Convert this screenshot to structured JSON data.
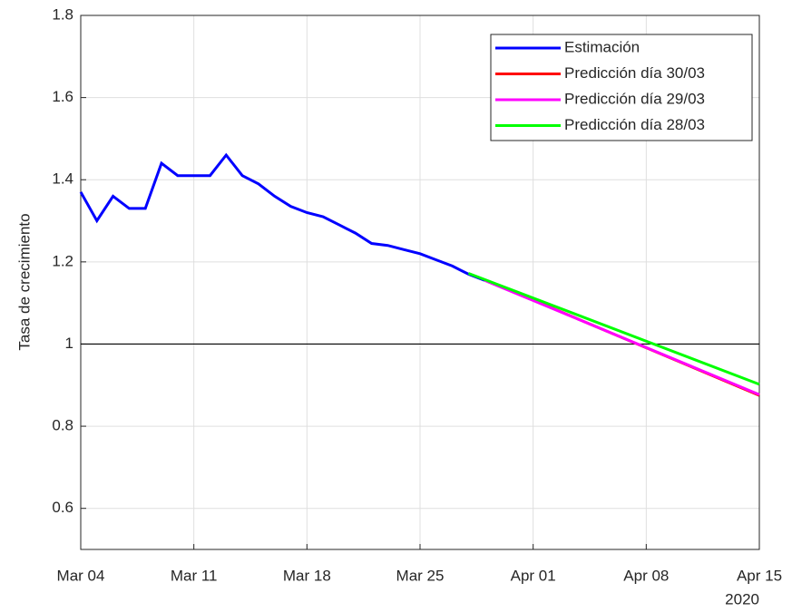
{
  "chart_data": {
    "type": "line",
    "ylabel": "Tasa de crecimiento",
    "x_secondary_label": "2020",
    "xlim": [
      "2020-03-04",
      "2020-04-15"
    ],
    "xticks": [
      {
        "value": "2020-03-04",
        "label": "Mar 04"
      },
      {
        "value": "2020-03-11",
        "label": "Mar 11"
      },
      {
        "value": "2020-03-18",
        "label": "Mar 18"
      },
      {
        "value": "2020-03-25",
        "label": "Mar 25"
      },
      {
        "value": "2020-04-01",
        "label": "Apr 01"
      },
      {
        "value": "2020-04-08",
        "label": "Apr 08"
      },
      {
        "value": "2020-04-15",
        "label": "Apr 15"
      }
    ],
    "ylim": [
      0.5,
      1.8
    ],
    "yticks": [
      0.6,
      0.8,
      1,
      1.2,
      1.4,
      1.6,
      1.8
    ],
    "grid": true,
    "reference_line": 1,
    "legend": "upper right",
    "series": [
      {
        "name": "Estimación",
        "color": "#0000ff",
        "x": [
          "2020-03-04",
          "2020-03-05",
          "2020-03-06",
          "2020-03-07",
          "2020-03-08",
          "2020-03-09",
          "2020-03-10",
          "2020-03-11",
          "2020-03-12",
          "2020-03-13",
          "2020-03-14",
          "2020-03-15",
          "2020-03-16",
          "2020-03-17",
          "2020-03-18",
          "2020-03-19",
          "2020-03-20",
          "2020-03-21",
          "2020-03-22",
          "2020-03-23",
          "2020-03-24",
          "2020-03-25",
          "2020-03-26",
          "2020-03-27",
          "2020-03-28",
          "2020-03-29"
        ],
        "values": [
          1.37,
          1.3,
          1.36,
          1.33,
          1.33,
          1.44,
          1.41,
          1.41,
          1.41,
          1.46,
          1.41,
          1.39,
          1.36,
          1.335,
          1.32,
          1.31,
          1.29,
          1.27,
          1.245,
          1.24,
          1.23,
          1.22,
          1.205,
          1.19,
          1.17,
          1.155
        ]
      },
      {
        "name": "Predicción día 30/03",
        "color": "#ff0000",
        "x": [
          "2020-03-30",
          "2020-04-15"
        ],
        "values": [
          1.14,
          0.875
        ]
      },
      {
        "name": "Predicción día 29/03",
        "color": "#ff00ff",
        "x": [
          "2020-03-29",
          "2020-04-15"
        ],
        "values": [
          1.155,
          0.877
        ]
      },
      {
        "name": "Predicción día 28/03",
        "color": "#00ff00",
        "x": [
          "2020-03-28",
          "2020-04-15"
        ],
        "values": [
          1.172,
          0.902
        ]
      }
    ]
  }
}
